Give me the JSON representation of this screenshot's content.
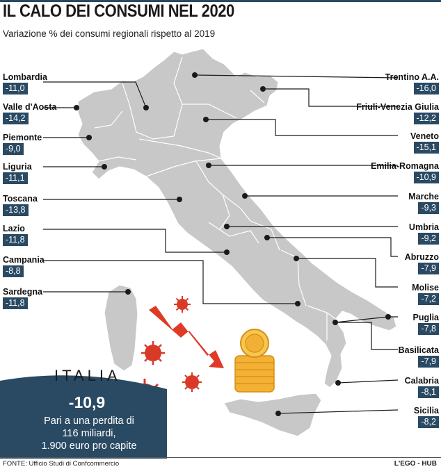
{
  "title": "IL CALO DEI CONSUMI NEL 2020",
  "subtitle": "Variazione % dei consumi regionali rispetto al 2019",
  "colors": {
    "map": "#c8c8c8",
    "value_box": "#2a4a63",
    "arrow": "#e03a26",
    "virus": "#d93a28",
    "coin": "#f2b134",
    "accent": "#2a4a63"
  },
  "chart_data": {
    "type": "table",
    "regions": [
      {
        "name": "Lombardia",
        "value": "-11,0"
      },
      {
        "name": "Valle d'Aosta",
        "value": "-14,2"
      },
      {
        "name": "Piemonte",
        "value": "-9,0"
      },
      {
        "name": "Liguria",
        "value": "-11,1"
      },
      {
        "name": "Toscana",
        "value": "-13,8"
      },
      {
        "name": "Lazio",
        "value": "-11,8"
      },
      {
        "name": "Campania",
        "value": "-8,8"
      },
      {
        "name": "Sardegna",
        "value": "-11,8"
      },
      {
        "name": "Trentino A.A.",
        "value": "-16,0"
      },
      {
        "name": "Friuli-Venezia Giulia",
        "value": "-12,2"
      },
      {
        "name": "Veneto",
        "value": "-15,1"
      },
      {
        "name": "Emilia-Romagna",
        "value": "-10,9"
      },
      {
        "name": "Marche",
        "value": "-9,3"
      },
      {
        "name": "Umbria",
        "value": "-9,2"
      },
      {
        "name": "Abruzzo",
        "value": "-7,9"
      },
      {
        "name": "Molise",
        "value": "-7,2"
      },
      {
        "name": "Puglia",
        "value": "-7,8"
      },
      {
        "name": "Basilicata",
        "value": "-7,9"
      },
      {
        "name": "Calabria",
        "value": "-8,1"
      },
      {
        "name": "Sicilia",
        "value": "-8,2"
      }
    ]
  },
  "italia": {
    "label": "ITALIA",
    "value": "-10,9",
    "description_line1": "Pari a una perdita di",
    "description_line2": "116 miliardi,",
    "description_line3": "1.900 euro pro capite"
  },
  "footer": {
    "source": "FONTE: Ufficio Studi di Confcommercio",
    "credit": "L'EGO - HUB"
  },
  "icons": [
    "downward-arrow-icon",
    "virus-icon",
    "coin-stack-icon"
  ]
}
